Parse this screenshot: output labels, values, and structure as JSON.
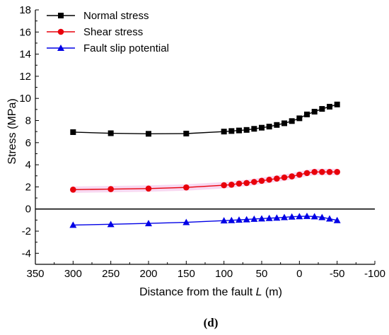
{
  "chart_data": {
    "type": "line",
    "xlabel_prefix": "Distance from the fault ",
    "xlabel_var": "L",
    "xlabel_unit": " (m)",
    "ylabel": "Stress (MPa)",
    "panel_label_open": "(",
    "panel_label_letter": "d",
    "panel_label_close": ")",
    "xlim": [
      350,
      -100
    ],
    "ylim": [
      -5,
      18
    ],
    "x_ticks": [
      350,
      300,
      250,
      200,
      150,
      100,
      50,
      0,
      -50,
      -100
    ],
    "x_tick_labels": [
      "350",
      "300",
      "250",
      "200",
      "150",
      "100",
      "50",
      "0",
      "-50",
      "-100"
    ],
    "y_ticks": [
      -4,
      -2,
      0,
      2,
      4,
      6,
      8,
      10,
      12,
      14,
      16,
      18
    ],
    "y_tick_labels": [
      "-4",
      "-2",
      "0",
      "2",
      "4",
      "6",
      "8",
      "10",
      "12",
      "14",
      "16",
      "18"
    ],
    "legend_position": "top-left",
    "grid": false,
    "zero_line": true,
    "series": [
      {
        "name": "Normal stress",
        "color": "#000000",
        "marker": "square",
        "x": [
          300,
          250,
          200,
          150,
          100,
          90,
          80,
          70,
          60,
          50,
          40,
          30,
          20,
          10,
          0,
          -10,
          -20,
          -30,
          -40,
          -50
        ],
        "values": [
          6.95,
          6.85,
          6.8,
          6.82,
          7.0,
          7.05,
          7.1,
          7.15,
          7.25,
          7.35,
          7.45,
          7.6,
          7.75,
          7.95,
          8.2,
          8.55,
          8.8,
          9.05,
          9.25,
          9.45
        ]
      },
      {
        "name": "Shear stress",
        "color": "#e8000b",
        "marker": "circle",
        "x": [
          300,
          250,
          200,
          150,
          100,
          90,
          80,
          70,
          60,
          50,
          40,
          30,
          20,
          10,
          0,
          -10,
          -20,
          -30,
          -40,
          -50
        ],
        "values": [
          1.75,
          1.8,
          1.85,
          1.95,
          2.15,
          2.2,
          2.3,
          2.35,
          2.45,
          2.55,
          2.65,
          2.75,
          2.85,
          2.95,
          3.1,
          3.25,
          3.35,
          3.35,
          3.35,
          3.35
        ]
      },
      {
        "name": "Fault slip potential",
        "color": "#0000e6",
        "marker": "triangle",
        "x": [
          300,
          250,
          200,
          150,
          100,
          90,
          80,
          70,
          60,
          50,
          40,
          30,
          20,
          10,
          0,
          -10,
          -20,
          -30,
          -40,
          -50
        ],
        "values": [
          -1.45,
          -1.38,
          -1.3,
          -1.2,
          -1.05,
          -1.02,
          -0.98,
          -0.95,
          -0.9,
          -0.87,
          -0.83,
          -0.8,
          -0.75,
          -0.7,
          -0.67,
          -0.65,
          -0.68,
          -0.75,
          -0.88,
          -1.02
        ]
      }
    ]
  }
}
